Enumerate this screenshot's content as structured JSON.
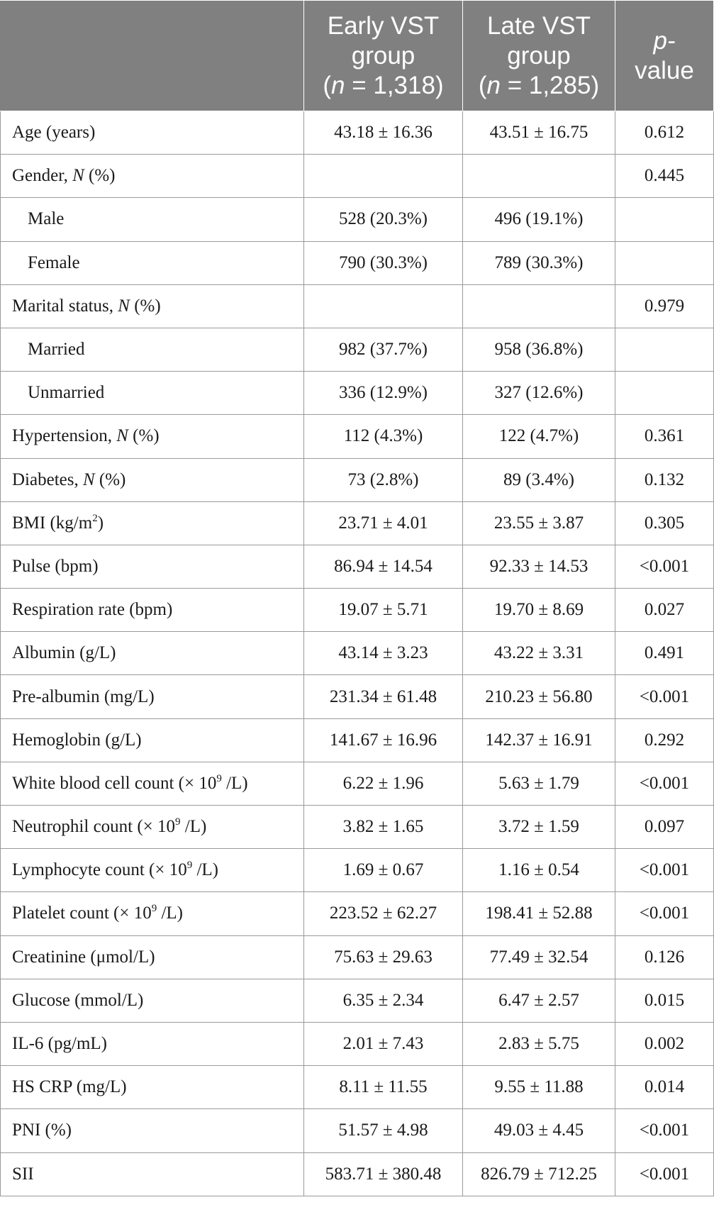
{
  "header": {
    "col1": "",
    "early_line1": "Early VST",
    "early_line2": "group",
    "early_n_prefix": "(",
    "early_n_var": "n",
    "early_n_rest": " = 1,318)",
    "late_line1": "Late VST",
    "late_line2": "group",
    "late_n_prefix": "(",
    "late_n_var": "n",
    "late_n_rest": " = 1,285)",
    "p_line1": "p-",
    "p_line2": "value"
  },
  "rows": [
    {
      "label": "Age (years)",
      "early": "43.18 ± 16.36",
      "late": "43.51 ± 16.75",
      "p": "0.612"
    },
    {
      "label_pre": "Gender, ",
      "label_var": "N",
      "label_post": " (%)",
      "early": "",
      "late": "",
      "p": "0.445"
    },
    {
      "label": "Male",
      "early": "528 (20.3%)",
      "late": "496 (19.1%)",
      "p": ""
    },
    {
      "label": "Female",
      "early": "790 (30.3%)",
      "late": "789 (30.3%)",
      "p": ""
    },
    {
      "label_pre": "Marital status, ",
      "label_var": "N",
      "label_post": " (%)",
      "early": "",
      "late": "",
      "p": "0.979"
    },
    {
      "label": "Married",
      "early": "982 (37.7%)",
      "late": "958 (36.8%)",
      "p": ""
    },
    {
      "label": "Unmarried",
      "early": "336 (12.9%)",
      "late": "327 (12.6%)",
      "p": ""
    },
    {
      "label_pre": "Hypertension, ",
      "label_var": "N",
      "label_post": " (%)",
      "early": "112 (4.3%)",
      "late": "122 (4.7%)",
      "p": "0.361"
    },
    {
      "label_pre": "Diabetes, ",
      "label_var": "N",
      "label_post": " (%)",
      "early": "73 (2.8%)",
      "late": "89 (3.4%)",
      "p": "0.132"
    },
    {
      "label_pre": "BMI (kg/m",
      "label_sup": "2",
      "label_post": ")",
      "early": "23.71 ± 4.01",
      "late": "23.55 ± 3.87",
      "p": "0.305"
    },
    {
      "label": "Pulse (bpm)",
      "early": "86.94 ± 14.54",
      "late": "92.33 ± 14.53",
      "p": "<0.001"
    },
    {
      "label": "Respiration rate (bpm)",
      "early": "19.07 ± 5.71",
      "late": "19.70 ± 8.69",
      "p": "0.027"
    },
    {
      "label": "Albumin (g/L)",
      "early": "43.14 ± 3.23",
      "late": "43.22 ± 3.31",
      "p": "0.491"
    },
    {
      "label": "Pre-albumin (mg/L)",
      "early": "231.34 ± 61.48",
      "late": "210.23 ± 56.80",
      "p": "<0.001"
    },
    {
      "label": "Hemoglobin (g/L)",
      "early": "141.67 ± 16.96",
      "late": "142.37 ± 16.91",
      "p": "0.292"
    },
    {
      "label_pre": "White blood cell count (× 10",
      "label_sup": "9",
      "label_post": " /L)",
      "early": "6.22 ± 1.96",
      "late": "5.63 ± 1.79",
      "p": "<0.001"
    },
    {
      "label_pre": "Neutrophil count (× 10",
      "label_sup": "9",
      "label_post": " /L)",
      "early": "3.82 ± 1.65",
      "late": "3.72 ± 1.59",
      "p": "0.097"
    },
    {
      "label_pre": "Lymphocyte count (× 10",
      "label_sup": "9",
      "label_post": " /L)",
      "early": "1.69 ± 0.67",
      "late": "1.16 ± 0.54",
      "p": "<0.001"
    },
    {
      "label_pre": "Platelet count (× 10",
      "label_sup": "9",
      "label_post": " /L)",
      "early": "223.52 ± 62.27",
      "late": "198.41 ± 52.88",
      "p": "<0.001"
    },
    {
      "label": "Creatinine (μmol/L)",
      "early": "75.63 ± 29.63",
      "late": "77.49 ± 32.54",
      "p": "0.126"
    },
    {
      "label": "Glucose (mmol/L)",
      "early": "6.35 ± 2.34",
      "late": "6.47 ± 2.57",
      "p": "0.015"
    },
    {
      "label": "IL-6 (pg/mL)",
      "early": "2.01 ± 7.43",
      "late": "2.83 ± 5.75",
      "p": "0.002"
    },
    {
      "label": "HS CRP (mg/L)",
      "early": "8.11 ± 11.55",
      "late": "9.55 ± 11.88",
      "p": "0.014"
    },
    {
      "label": "PNI (%)",
      "early": "51.57 ± 4.98",
      "late": "49.03 ± 4.45",
      "p": "<0.001"
    },
    {
      "label": "SII",
      "early": "583.71 ± 380.48",
      "late": "826.79 ± 712.25",
      "p": "<0.001"
    }
  ]
}
